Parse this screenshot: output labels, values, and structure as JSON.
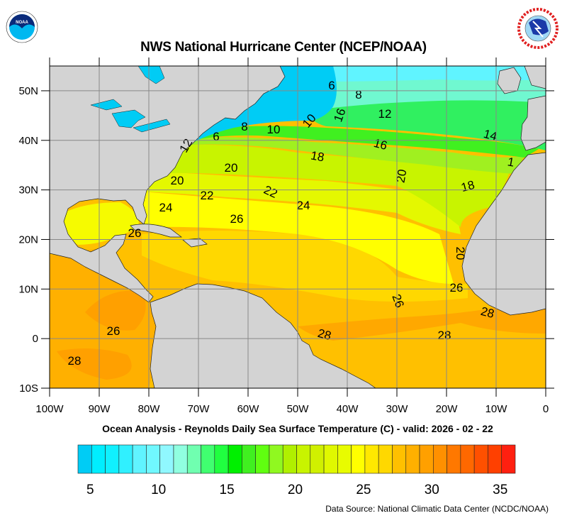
{
  "header": {
    "title": "NWS National Hurricane Center (NCEP/NOAA)",
    "logo_left_text": "NOAA",
    "logo_right_text": "NATIONAL WEATHER SERVICE"
  },
  "map": {
    "lon_labels": [
      "100W",
      "90W",
      "80W",
      "70W",
      "60W",
      "50W",
      "40W",
      "30W",
      "20W",
      "10W",
      "0"
    ],
    "lat_labels": [
      "10S",
      "0",
      "10N",
      "20N",
      "30N",
      "40N",
      "50N"
    ],
    "lon_range": [
      -100,
      0
    ],
    "lat_range": [
      -10,
      55
    ],
    "land_color": "#d3d3d3",
    "contour_labels": [
      "6",
      "8",
      "12",
      "14",
      "16",
      "16",
      "18",
      "18",
      "20",
      "20",
      "20",
      "20",
      "22",
      "22",
      "24",
      "24",
      "26",
      "26",
      "26",
      "26",
      "26",
      "28",
      "28",
      "28",
      "28",
      "6",
      "8",
      "10",
      "10",
      "12",
      "1"
    ]
  },
  "caption": "Ocean Analysis - Reynolds Daily Sea Surface Temperature (C) - valid: 2026 - 02 - 22",
  "colorbar": {
    "min": 4,
    "max": 36,
    "tick_labels": [
      "5",
      "10",
      "15",
      "20",
      "25",
      "30",
      "35"
    ],
    "colors": [
      "#00ccf5",
      "#00eeff",
      "#10f0ff",
      "#30f0ff",
      "#60f4ff",
      "#70f8ff",
      "#90f8ff",
      "#90ffe0",
      "#70ffb0",
      "#40ff70",
      "#20ff40",
      "#00f000",
      "#40f020",
      "#60ff10",
      "#90f820",
      "#b0f000",
      "#c8f400",
      "#d0f000",
      "#e0f800",
      "#e8fc00",
      "#ffff00",
      "#ffe800",
      "#ffd800",
      "#ffc000",
      "#ffb000",
      "#ffa000",
      "#ff9000",
      "#ff7800",
      "#ff6800",
      "#ff5000",
      "#ff4000",
      "#ff2010"
    ]
  },
  "footer": {
    "source": "Data Source: National Climatic Data Center (NCDC/NOAA)"
  }
}
